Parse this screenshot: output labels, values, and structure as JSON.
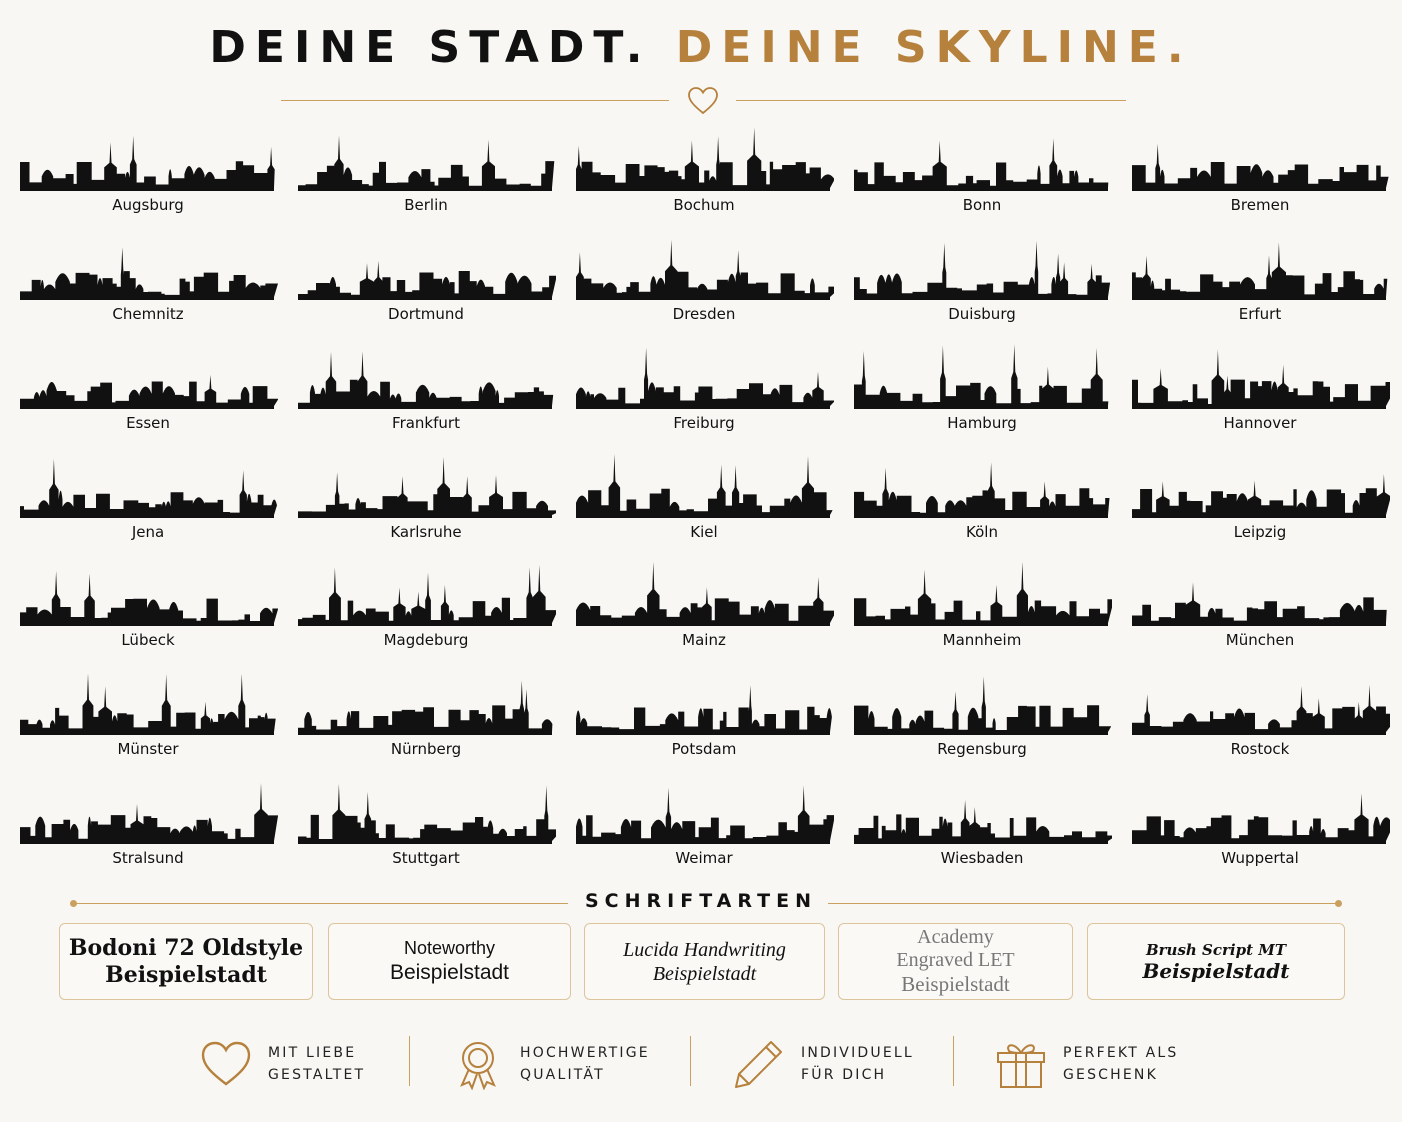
{
  "header": {
    "title_part1": "DEINE STADT.",
    "title_part2": "DEINE SKYLINE."
  },
  "colors": {
    "accent": "#b5813d",
    "line": "#c9a060",
    "background": "#f8f7f4",
    "silhouette": "#111111"
  },
  "icons": {
    "header": "heart-icon",
    "skyline": "city-skyline-icon"
  },
  "cities": [
    "Augsburg",
    "Berlin",
    "Bochum",
    "Bonn",
    "Bremen",
    "Chemnitz",
    "Dortmund",
    "Dresden",
    "Duisburg",
    "Erfurt",
    "Essen",
    "Frankfurt",
    "Freiburg",
    "Hamburg",
    "Hannover",
    "Jena",
    "Karlsruhe",
    "Kiel",
    "Köln",
    "Leipzig",
    "Lübeck",
    "Magdeburg",
    "Mainz",
    "Mannheim",
    "München",
    "Münster",
    "Nürnberg",
    "Potsdam",
    "Regensburg",
    "Rostock",
    "Stralsund",
    "Stuttgart",
    "Weimar",
    "Wiesbaden",
    "Wuppertal"
  ],
  "fonts_section": {
    "heading": "SCHRIFTARTEN",
    "fonts": [
      {
        "name": "Bodoni 72 Oldstyle",
        "sample": "Beispielstadt"
      },
      {
        "name": "Noteworthy",
        "sample": "Beispielstadt"
      },
      {
        "name": "Lucida Handwriting",
        "sample": "Beispielstadt"
      },
      {
        "name_line1": "Academy",
        "name_line2": "Engraved LET",
        "sample": "Beispielstadt"
      },
      {
        "name": "Brush Script MT",
        "sample": "Beispielstadt"
      }
    ]
  },
  "features": [
    {
      "icon": "heart-icon",
      "line1": "MIT LIEBE",
      "line2": "GESTALTET"
    },
    {
      "icon": "award-icon",
      "line1": "HOCHWERTIGE",
      "line2": "QUALITÄT"
    },
    {
      "icon": "pencil-icon",
      "line1": "INDIVIDUELL",
      "line2": "FÜR DICH"
    },
    {
      "icon": "gift-icon",
      "line1": "PERFEKT ALS",
      "line2": "GESCHENK"
    }
  ]
}
